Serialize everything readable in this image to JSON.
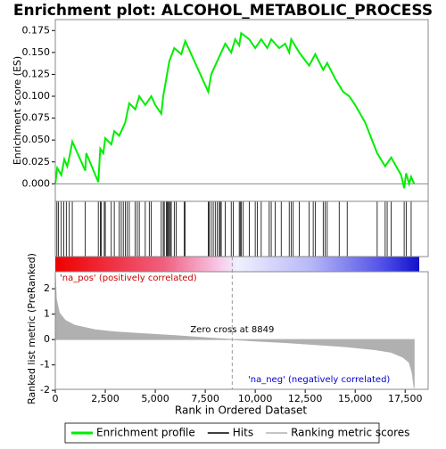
{
  "chart_data": [
    {
      "type": "line",
      "title": "Enrichment plot: ALCOHOL_METABOLIC_PROCESS",
      "y_label": "Enrichment score (ES)",
      "xlim": [
        0,
        18650
      ],
      "ylim": [
        -0.02,
        0.1875
      ],
      "yticks": [
        {
          "value": 0,
          "label": "0.000"
        },
        {
          "value": 0.025,
          "label": "0.025"
        },
        {
          "value": 0.05,
          "label": "0.050"
        },
        {
          "value": 0.075,
          "label": "0.075"
        },
        {
          "value": 0.1,
          "label": "0.100"
        },
        {
          "value": 0.125,
          "label": "0.125"
        },
        {
          "value": 0.15,
          "label": "0.150"
        },
        {
          "value": 0.175,
          "label": "0.175"
        }
      ],
      "series": [
        {
          "name": "Enrichment profile",
          "color": "#00ee00",
          "x": [
            0,
            100,
            300,
            450,
            600,
            700,
            850,
            1500,
            1550,
            2150,
            2250,
            2400,
            2500,
            2800,
            2950,
            3200,
            3500,
            3700,
            4000,
            4200,
            4500,
            4800,
            5000,
            5300,
            5400,
            5550,
            5700,
            5950,
            6300,
            6500,
            7650,
            7800,
            8100,
            8500,
            8800,
            9000,
            9200,
            9300,
            9700,
            10000,
            10300,
            10600,
            10800,
            11200,
            11500,
            11700,
            11800,
            12200,
            12700,
            13000,
            13400,
            13600,
            14000,
            14400,
            14700,
            15000,
            15500,
            16100,
            16500,
            16800,
            17300,
            17450,
            17550,
            17700,
            17800,
            17950
          ],
          "values": [
            0,
            0.018,
            0.01,
            0.028,
            0.02,
            0.03,
            0.048,
            0.015,
            0.035,
            0.002,
            0.04,
            0.035,
            0.052,
            0.045,
            0.06,
            0.055,
            0.07,
            0.092,
            0.085,
            0.1,
            0.09,
            0.1,
            0.09,
            0.08,
            0.1,
            0.12,
            0.14,
            0.155,
            0.148,
            0.163,
            0.105,
            0.125,
            0.14,
            0.16,
            0.15,
            0.165,
            0.158,
            0.172,
            0.165,
            0.155,
            0.165,
            0.155,
            0.165,
            0.155,
            0.16,
            0.15,
            0.165,
            0.15,
            0.135,
            0.148,
            0.13,
            0.138,
            0.12,
            0.105,
            0.1,
            0.09,
            0.07,
            0.035,
            0.02,
            0.03,
            0.01,
            -0.005,
            0.012,
            0,
            0.008,
            0
          ]
        },
        {
          "name": "Hits",
          "color": "#000000",
          "x": [
            80,
            150,
            300,
            420,
            550,
            700,
            850,
            1500,
            2150,
            2250,
            2300,
            2450,
            2500,
            2800,
            2950,
            3200,
            3300,
            3400,
            3500,
            3600,
            3700,
            4000,
            4100,
            4200,
            4500,
            4700,
            4800,
            5300,
            5400,
            5450,
            5550,
            5600,
            5650,
            5700,
            5750,
            5800,
            5950,
            6050,
            6450,
            6500,
            7650,
            7700,
            7800,
            7900,
            8000,
            8100,
            8200,
            8250,
            8300,
            8500,
            8800,
            8900,
            9200,
            9250,
            9300,
            9400,
            9700,
            10000,
            10100,
            10300,
            10700,
            10800,
            11000,
            11300,
            11700,
            11800,
            11900,
            12200,
            12700,
            12900,
            13000,
            13400,
            13500,
            13600,
            14200,
            14600,
            16100,
            16500,
            16600,
            16800,
            17450,
            17550,
            17800
          ]
        }
      ]
    },
    {
      "type": "area",
      "x_label": "Rank in Ordered Dataset",
      "y_label": "Ranked list metric (PreRanked)",
      "xlim": [
        0,
        18650
      ],
      "ylim": [
        -1.96,
        2.67
      ],
      "xticks": [
        0,
        {
          "value": 2500,
          "label": "2,500"
        },
        {
          "value": 5000,
          "label": "5,000"
        },
        {
          "value": 7500,
          "label": "7,500"
        },
        {
          "value": 10000,
          "label": "10,000"
        },
        {
          "value": 12500,
          "label": "12,500"
        },
        {
          "value": 15000,
          "label": "15,000"
        },
        {
          "value": 17500,
          "label": "17,500"
        }
      ],
      "yticks": [
        2,
        1,
        0,
        -1,
        -2
      ],
      "zero_cross": 8849,
      "annotations": [
        "Zero cross at 8849",
        "'na_pos' (positively correlated)",
        "'na_neg' (negatively correlated)"
      ],
      "series": [
        {
          "name": "Ranking metric scores",
          "color": "#b0b0b0",
          "x": [
            0,
            50,
            200,
            500,
            1000,
            2000,
            3000,
            4500,
            6000,
            7500,
            8849,
            10000,
            11500,
            13000,
            14500,
            16000,
            16800,
            17400,
            17700,
            17850,
            17950
          ],
          "values": [
            2.6,
            1.6,
            1.05,
            0.75,
            0.55,
            0.38,
            0.3,
            0.22,
            0.15,
            0.07,
            0,
            -0.06,
            -0.12,
            -0.2,
            -0.28,
            -0.4,
            -0.5,
            -0.7,
            -0.9,
            -1.3,
            -1.9
          ]
        }
      ]
    }
  ]
}
